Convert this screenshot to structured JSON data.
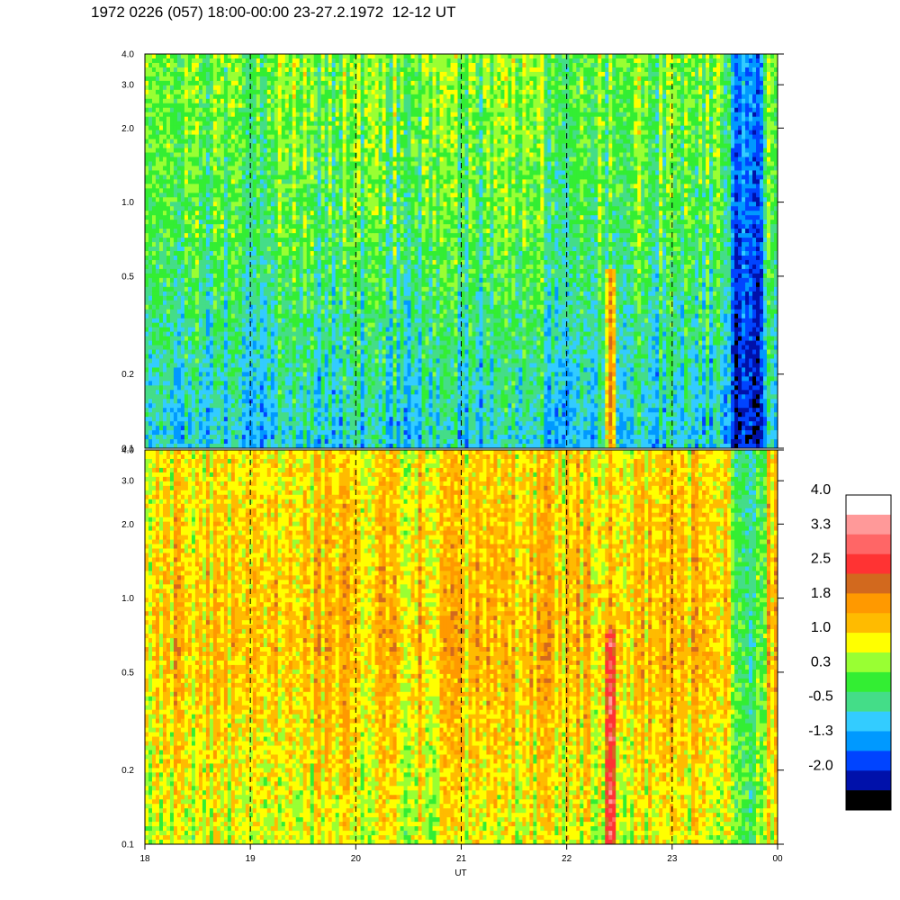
{
  "title": "1972 0226 (057) 18:00-00:00 23-27.2.1972  12-12 UT",
  "chart_data": [
    {
      "type": "heatmap",
      "panel": "top",
      "x_ticks": [
        "18",
        "19",
        "20",
        "21",
        "22",
        "23",
        "00"
      ],
      "xlim": [
        18,
        24
      ],
      "y_ticks": [
        "4.0",
        "3.0",
        "2.0",
        "1.0",
        "0.5",
        "0.2",
        "0.1"
      ],
      "ylim": [
        0.1,
        4.0
      ],
      "y_scale": "log",
      "grid": "vertical dashed lines at each hour",
      "description_levels": {
        "background_low_freq": -0.5,
        "background_mid_freq": 0.3,
        "background_high_freq": 0.6,
        "event_22_4_ut": 1.8,
        "dark_region_23_6_ut": -1.8
      }
    },
    {
      "type": "heatmap",
      "panel": "bottom",
      "x_ticks": [
        "18",
        "19",
        "20",
        "21",
        "22",
        "23",
        "00"
      ],
      "xlim": [
        18,
        24
      ],
      "xlabel": "UT",
      "y_ticks": [
        "4.0",
        "3.0",
        "2.0",
        "1.0",
        "0.5",
        "0.2",
        "0.1"
      ],
      "ylim": [
        0.1,
        4.0
      ],
      "y_scale": "log",
      "grid": "vertical dashed lines at each hour",
      "description_levels": {
        "background_low_freq": 1.0,
        "background_mid_freq": 1.6,
        "background_high_freq": 1.3,
        "event_22_4_ut": 2.8,
        "late_region_23_6_ut": 0.0
      }
    }
  ],
  "colorbar": {
    "labels": [
      "4.0",
      "3.3",
      "2.5",
      "1.8",
      "1.0",
      "0.3",
      "-0.5",
      "-1.3",
      "-2.0"
    ],
    "colors": [
      "#ffffff",
      "#ff9999",
      "#ff6666",
      "#ff3333",
      "#d2691e",
      "#ff9900",
      "#ffbb00",
      "#ffff00",
      "#99ff33",
      "#33ee33",
      "#44dd88",
      "#33ccff",
      "#0099ff",
      "#0044ff",
      "#0011aa",
      "#000000"
    ]
  },
  "xlabel": "UT"
}
